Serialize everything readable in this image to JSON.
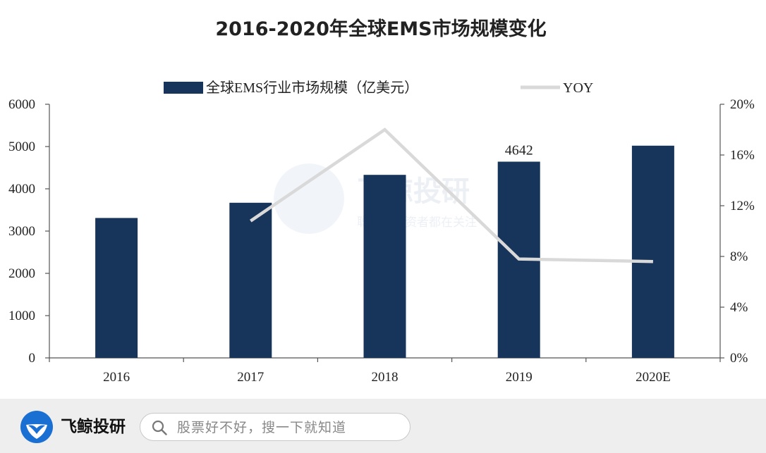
{
  "chart_data": {
    "type": "bar+line",
    "title": "2016-2020年全球EMS市场规模变化",
    "categories": [
      "2016",
      "2017",
      "2018",
      "2019",
      "2020E"
    ],
    "series": [
      {
        "name": "全球EMS行业市场规模（亿美元）",
        "type": "bar",
        "axis": "left",
        "color": "#17345a",
        "values": [
          3310,
          3670,
          4330,
          4642,
          5020
        ]
      },
      {
        "name": "YOY",
        "type": "line",
        "axis": "right",
        "color": "#d9d9d9",
        "values": [
          null,
          0.108,
          0.18,
          0.078,
          0.076
        ]
      }
    ],
    "data_labels": [
      {
        "category": "2019",
        "text": "4642"
      }
    ],
    "y_left": {
      "ylim": [
        0,
        6000
      ],
      "ticks": [
        "0",
        "1000",
        "2000",
        "3000",
        "4000",
        "5000",
        "6000"
      ]
    },
    "y_right": {
      "ylim": [
        0,
        0.2
      ],
      "ticks": [
        "0%",
        "4%",
        "8%",
        "12%",
        "16%",
        "20%"
      ]
    },
    "grid": false,
    "legend": "top"
  },
  "watermark": {
    "title": "飞鲸投研",
    "subtitle": "聪明的投资者都在关注"
  },
  "footer": {
    "brand_name": "飞鲸投研",
    "search_placeholder": "股票好不好，搜一下就知道",
    "brand_color": "#1a6fd3"
  }
}
